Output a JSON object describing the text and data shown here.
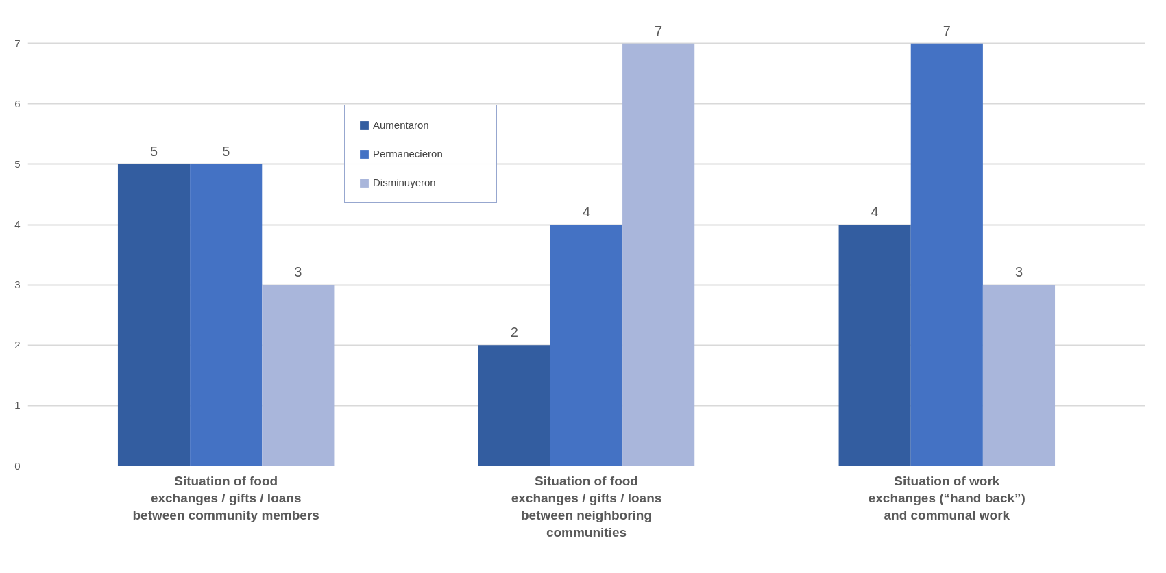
{
  "chart_data": {
    "type": "bar",
    "categories": [
      "Situation of food exchanges / gifts / loans between community members",
      "Situation of food exchanges / gifts / loans between neighboring communities",
      "Situation of work exchanges (“hand back”) and communal work"
    ],
    "series": [
      {
        "name": "Aumentaron",
        "color": "#335da0",
        "values": [
          5,
          2,
          4
        ]
      },
      {
        "name": "Permanecieron",
        "color": "#4472c4",
        "values": [
          5,
          4,
          7
        ]
      },
      {
        "name": "Disminuyeron",
        "color": "#a9b6db",
        "values": [
          3,
          7,
          3
        ]
      }
    ],
    "ylim": [
      0,
      7
    ],
    "yticks": [
      0,
      1,
      2,
      3,
      4,
      5,
      6,
      7
    ],
    "grid": "y",
    "legend": "top left",
    "data_labels": true
  }
}
